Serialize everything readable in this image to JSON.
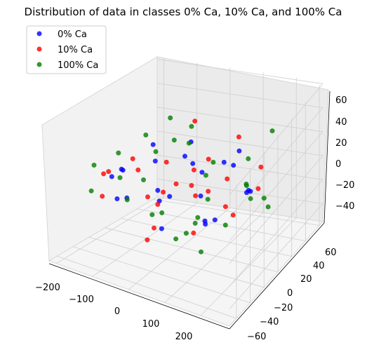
{
  "chart_data": {
    "type": "scatter",
    "projection": "3d",
    "title": "Distribution of data in classes 0% Ca, 10% Ca, and 100% Ca",
    "xlabel": "",
    "ylabel": "",
    "zlabel": "",
    "xlim": [
      -220,
      280
    ],
    "ylim": [
      -65,
      70
    ],
    "zlim": [
      -55,
      62
    ],
    "x_ticks": [
      "−200",
      "−100",
      "0",
      "100",
      "200"
    ],
    "y_ticks": [
      "−60",
      "−40",
      "−20",
      "0",
      "20",
      "40",
      "60"
    ],
    "z_ticks": [
      "−40",
      "−20",
      "0",
      "20",
      "40",
      "60"
    ],
    "grid": true,
    "legend_position": "upper-left",
    "point_count_note": "",
    "series": [
      {
        "name": "0% Ca",
        "color": "#0000ff",
        "points": [
          [
            -150,
            10,
            5
          ],
          [
            -120,
            -20,
            0
          ],
          [
            -90,
            30,
            -5
          ],
          [
            -60,
            -40,
            10
          ],
          [
            -30,
            15,
            -10
          ],
          [
            0,
            -5,
            20
          ],
          [
            30,
            40,
            -15
          ],
          [
            60,
            -30,
            5
          ],
          [
            90,
            10,
            -20
          ],
          [
            120,
            -15,
            15
          ],
          [
            150,
            25,
            -5
          ],
          [
            180,
            -10,
            0
          ],
          [
            -100,
            45,
            20
          ],
          [
            -50,
            -50,
            -20
          ],
          [
            40,
            50,
            25
          ],
          [
            100,
            -45,
            -25
          ],
          [
            -70,
            5,
            30
          ],
          [
            70,
            0,
            -30
          ],
          [
            10,
            20,
            0
          ],
          [
            -10,
            -20,
            5
          ],
          [
            200,
            5,
            10
          ],
          [
            -180,
            -5,
            -5
          ],
          [
            130,
            35,
            20
          ],
          [
            -140,
            20,
            -15
          ],
          [
            50,
            -55,
            0
          ]
        ]
      },
      {
        "name": "10% Ca",
        "color": "#ff0000",
        "points": [
          [
            -140,
            0,
            10
          ],
          [
            -110,
            -30,
            -5
          ],
          [
            -80,
            20,
            15
          ],
          [
            -40,
            -35,
            -10
          ],
          [
            -20,
            35,
            5
          ],
          [
            20,
            -10,
            -15
          ],
          [
            50,
            30,
            20
          ],
          [
            80,
            -25,
            -5
          ],
          [
            110,
            15,
            10
          ],
          [
            140,
            -5,
            -20
          ],
          [
            170,
            20,
            5
          ],
          [
            -160,
            30,
            -10
          ],
          [
            -60,
            -45,
            25
          ],
          [
            0,
            45,
            -25
          ],
          [
            60,
            -50,
            15
          ],
          [
            120,
            40,
            -10
          ],
          [
            -90,
            -10,
            -30
          ],
          [
            90,
            5,
            30
          ],
          [
            30,
            0,
            0
          ],
          [
            -30,
            10,
            -5
          ],
          [
            190,
            -20,
            15
          ],
          [
            -190,
            15,
            0
          ],
          [
            150,
            -35,
            -15
          ],
          [
            -120,
            40,
            20
          ],
          [
            40,
            55,
            -5
          ]
        ]
      },
      {
        "name": "100% Ca",
        "color": "#008000",
        "points": [
          [
            -170,
            5,
            15
          ],
          [
            -130,
            -25,
            5
          ],
          [
            -100,
            25,
            -10
          ],
          [
            -70,
            -45,
            20
          ],
          [
            -40,
            20,
            -20
          ],
          [
            -10,
            -15,
            25
          ],
          [
            20,
            35,
            -5
          ],
          [
            50,
            -20,
            10
          ],
          [
            80,
            15,
            -15
          ],
          [
            110,
            -40,
            5
          ],
          [
            140,
            30,
            15
          ],
          [
            170,
            -15,
            -10
          ],
          [
            210,
            10,
            20
          ],
          [
            -200,
            -10,
            -15
          ],
          [
            -150,
            45,
            25
          ],
          [
            -50,
            -55,
            -25
          ],
          [
            0,
            50,
            30
          ],
          [
            60,
            -60,
            -30
          ],
          [
            130,
            55,
            0
          ],
          [
            160,
            -50,
            25
          ],
          [
            -20,
            0,
            35
          ],
          [
            30,
            -5,
            -35
          ],
          [
            -80,
            10,
            40
          ],
          [
            100,
            20,
            -40
          ],
          [
            240,
            0,
            5
          ],
          [
            -110,
            -35,
            30
          ],
          [
            70,
            40,
            -20
          ],
          [
            190,
            -30,
            -25
          ],
          [
            -180,
            35,
            -5
          ],
          [
            220,
            45,
            10
          ]
        ]
      }
    ]
  }
}
